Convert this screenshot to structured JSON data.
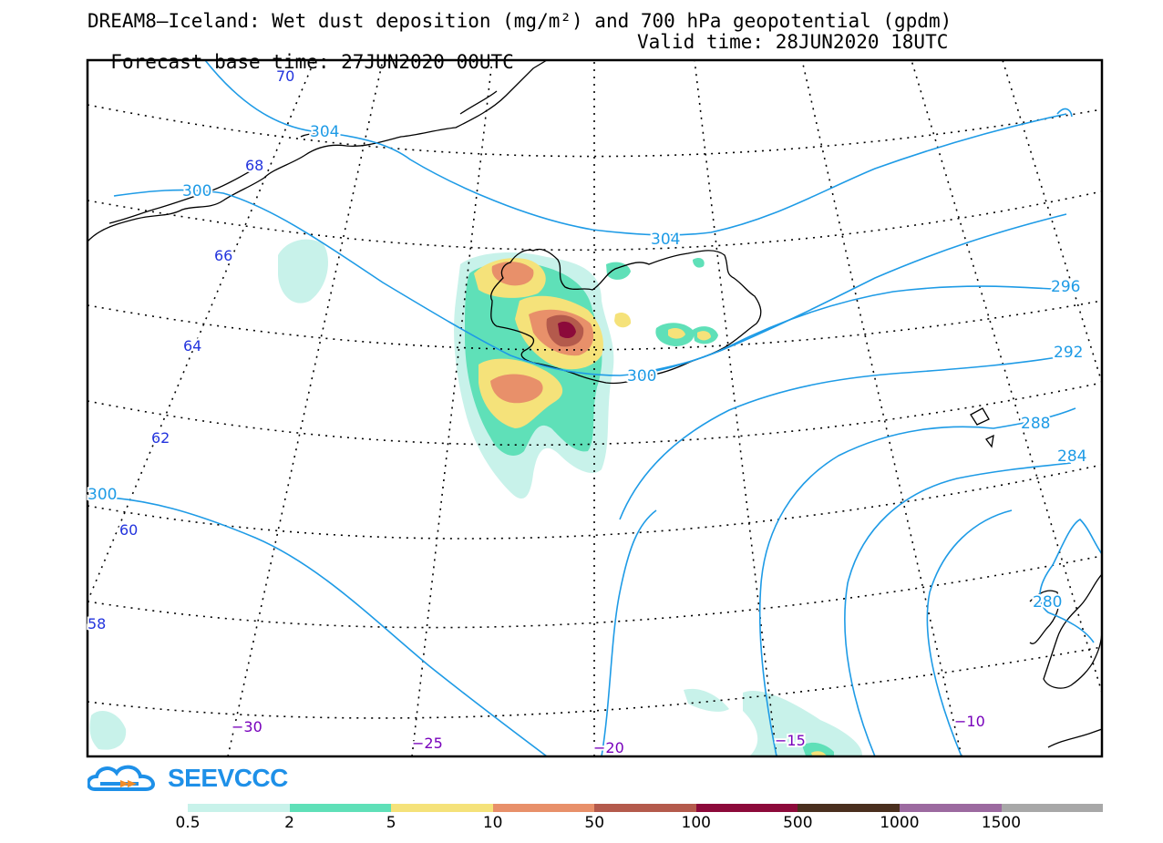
{
  "title_line1": "DREAM8—Iceland: Wet dust deposition (mg/m²) and 700 hPa geopotential (gpdm)",
  "title_line2_base": "Forecast base time: 27JUN2020 00UTC",
  "title_line2_valid": "Valid time: 28JUN2020 18UTC",
  "logo": {
    "name": "SEEVCCC",
    "icon": "cloud-logo-icon"
  },
  "map": {
    "lat_labels": [
      "70",
      "68",
      "66",
      "64",
      "62",
      "60",
      "58"
    ],
    "lon_labels": [
      "−30",
      "−25",
      "−20",
      "−15",
      "−10"
    ],
    "contour_labels": [
      "304",
      "300",
      "304",
      "300",
      "296",
      "292",
      "288",
      "284",
      "300",
      "280"
    ],
    "contour_color": "#1e9be6",
    "lat_label_color": "#2233dd",
    "lon_label_color": "#7700bb"
  },
  "colorbar": {
    "labels": [
      "0.5",
      "2",
      "5",
      "10",
      "50",
      "100",
      "500",
      "1000",
      "1500"
    ],
    "colors": [
      "#c8f2ea",
      "#5fe0b8",
      "#f5e27a",
      "#e8906a",
      "#b45a4c",
      "#8c0a3a",
      "#4a2f1e",
      "#9c6aa0",
      "#a8a8a8"
    ]
  }
}
